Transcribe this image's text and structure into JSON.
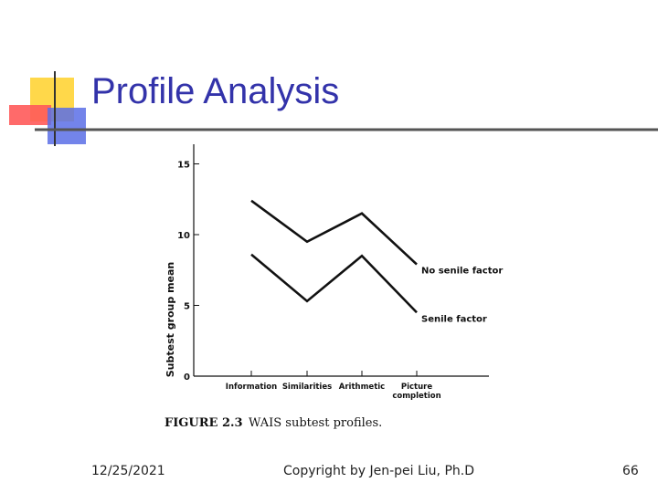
{
  "slide": {
    "title": "Profile Analysis",
    "date": "12/25/2021",
    "copyright": "Copyright by Jen-pei Liu, Ph.D",
    "page_number": "66",
    "colors": {
      "title": "#3333aa",
      "deco_yellow": "#ffd84a",
      "deco_red": "#ff5a5a",
      "deco_blue": "#5a6ee6",
      "rule": "#555555"
    }
  },
  "chart_data": {
    "type": "line",
    "ylabel": "Subtest group mean",
    "xlabel": "",
    "caption_label": "FIGURE 2.3",
    "caption_text": "WAIS subtest profiles.",
    "categories": [
      "Information",
      "Similarities",
      "Arithmetic",
      "Picture completion"
    ],
    "category_labels": [
      [
        "Information"
      ],
      [
        "Similarities"
      ],
      [
        "Arithmetic"
      ],
      [
        "Picture",
        "completion"
      ]
    ],
    "yticks": [
      "0",
      "5",
      "10",
      "15"
    ],
    "ylim": [
      0,
      16
    ],
    "grid": false,
    "series": [
      {
        "name": "No senile factor",
        "values": [
          12.4,
          9.5,
          11.5,
          7.9
        ]
      },
      {
        "name": "Senile factor",
        "values": [
          8.6,
          5.3,
          8.5,
          4.5
        ]
      }
    ]
  }
}
